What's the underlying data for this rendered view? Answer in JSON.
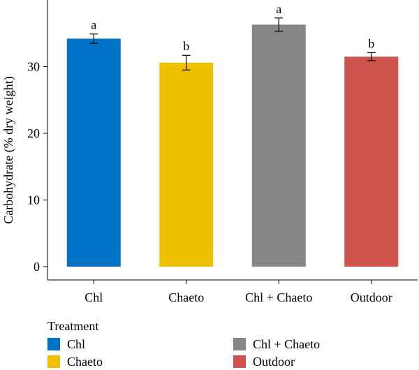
{
  "chart_data": {
    "type": "bar",
    "categories": [
      "Chl",
      "Chaeto",
      "Chl + Chaeto",
      "Outdoor"
    ],
    "values": [
      34.2,
      30.6,
      36.3,
      31.5
    ],
    "errors": [
      0.7,
      1.1,
      1.0,
      0.6
    ],
    "significance_letters": [
      "a",
      "b",
      "a",
      "b"
    ],
    "colors": [
      "#0072C6",
      "#EFC000",
      "#868686",
      "#CD534C"
    ],
    "ylabel": "Carbohydrate (% dry weight)",
    "xlabel": "",
    "ylim": [
      -2,
      40
    ],
    "yticks": [
      0,
      10,
      20,
      30
    ],
    "grid": false,
    "legend": {
      "title": "Treatment",
      "placement": "bottom",
      "entries": [
        "Chl",
        "Chaeto",
        "Chl + Chaeto",
        "Outdoor"
      ]
    }
  }
}
